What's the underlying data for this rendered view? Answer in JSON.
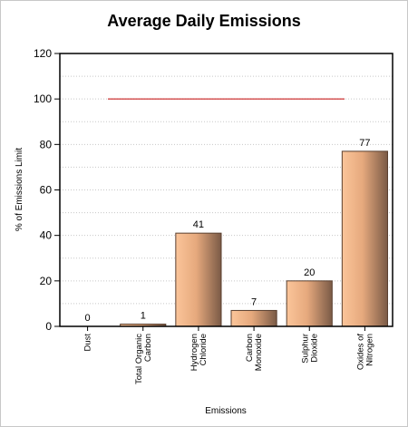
{
  "chart_data": {
    "type": "bar",
    "title": "Average Daily Emissions",
    "xlabel": "Emissions",
    "ylabel": "% of Emissions Limit",
    "ylim": [
      0,
      120
    ],
    "yticks": [
      0,
      20,
      40,
      60,
      80,
      100,
      120
    ],
    "categories": [
      [
        "Dust"
      ],
      [
        "Total Organic",
        "Carbon"
      ],
      [
        "Hydrogen",
        "Chloride"
      ],
      [
        "Carbon",
        "Monoxide"
      ],
      [
        "Sulphur",
        "Dioxide"
      ],
      [
        "Oxides of",
        "Nitrogen"
      ]
    ],
    "values": [
      0,
      1,
      41,
      7,
      20,
      77
    ],
    "data_labels": [
      "0",
      "1",
      "41",
      "7",
      "20",
      "77"
    ],
    "reference_line": {
      "value": 100,
      "color": "#c00000"
    },
    "grid": true,
    "legend": "none",
    "colors": {
      "bar_light": "#fbc59a",
      "bar_mid": "#e6a97d",
      "bar_dark": "#7a5a46",
      "bar_outline": "#5a4030",
      "grid": "#c8c8c8",
      "axis": "#000000"
    }
  }
}
